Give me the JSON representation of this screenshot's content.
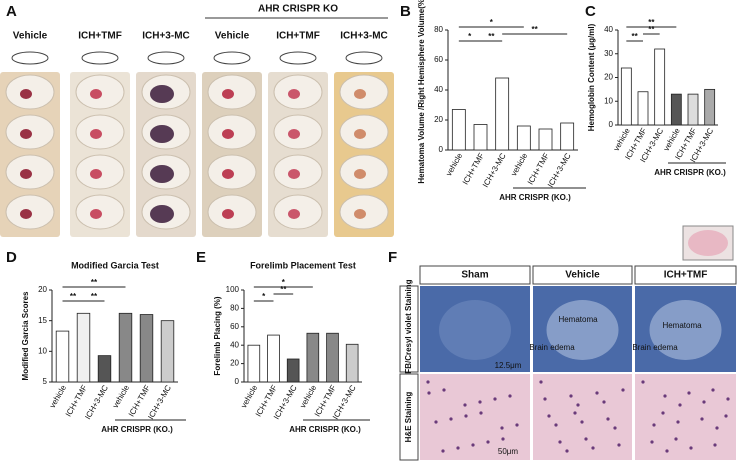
{
  "panel_a": {
    "letter": "A",
    "group": "AHR CRISPR KO",
    "labels": [
      "Vehicle",
      "ICH+TMF",
      "ICH+3-MC",
      "Vehicle",
      "ICH+TMF",
      "ICH+3-MC"
    ]
  },
  "panel_f": {
    "letter": "F",
    "columns": [
      "Sham",
      "Vehicle",
      "ICH+TMF"
    ],
    "rows": [
      "LFB/Cresyl violet Staining",
      "H&E Staining"
    ],
    "annotations": [
      "Hematoma",
      "Brain edema",
      "Hematoma",
      "Brain edema"
    ],
    "scale_bars": [
      "12.5μm",
      "50μm"
    ]
  },
  "chart_data": [
    {
      "type": "bar",
      "letter": "B",
      "ylabel": "Hematoma Volume /Right Hemisphere Volume(%)",
      "categories": [
        "vehicle",
        "ICH+TMF",
        "ICH+3-MC",
        "vehicle",
        "ICH+TMF",
        "ICH+3-MC"
      ],
      "values": [
        27,
        17,
        48,
        16,
        14,
        18
      ],
      "colors": [
        "#ffffff",
        "#ffffff",
        "#ffffff",
        "#ffffff",
        "#ffffff",
        "#ffffff"
      ],
      "ylim": [
        0,
        80
      ],
      "yticks": [
        0,
        20,
        40,
        60,
        80
      ],
      "group_label": "AHR CRISPR (KO.)",
      "significance": [
        "*",
        "*",
        "**",
        "**"
      ]
    },
    {
      "type": "bar",
      "letter": "C",
      "ylabel": "Hemoglobin Content (μg/ml)",
      "categories": [
        "vehicle",
        "ICH+TMF",
        "ICH+3-MC",
        "vehicle",
        "ICH+TMF",
        "ICH+3-MC"
      ],
      "values": [
        24,
        14,
        32,
        13,
        13,
        15
      ],
      "colors": [
        "#ffffff",
        "#ffffff",
        "#ffffff",
        "#555555",
        "#dddddd",
        "#aaaaaa"
      ],
      "ylim": [
        0,
        40
      ],
      "yticks": [
        0,
        10,
        20,
        30,
        40
      ],
      "group_label": "AHR CRISPR (KO.)",
      "significance": [
        "**",
        "**",
        "**"
      ]
    },
    {
      "type": "bar",
      "letter": "D",
      "title": "Modified Garcia Test",
      "ylabel": "Modified Garcia Scores",
      "categories": [
        "vehicle",
        "ICH+TMF",
        "ICH+3-MC",
        "vehicle",
        "ICH+TMF",
        "ICH+3-MC"
      ],
      "values": [
        13.3,
        16.2,
        9.3,
        16.2,
        16,
        15
      ],
      "colors": [
        "#ffffff",
        "#f0f0f0",
        "#555555",
        "#888888",
        "#888888",
        "#cccccc"
      ],
      "ylim": [
        5,
        20
      ],
      "yticks": [
        5,
        10,
        15,
        20
      ],
      "group_label": "AHR CRISPR (KO.)",
      "significance": [
        "**",
        "**",
        "**"
      ]
    },
    {
      "type": "bar",
      "letter": "E",
      "title": "Forelimb Placement Test",
      "ylabel": "Forelimb Placing (%)",
      "categories": [
        "vehicle",
        "ICH+TMF",
        "ICH+3-MC",
        "vehicle",
        "ICH+TMF",
        "ICH+3-MC"
      ],
      "values": [
        40,
        51,
        25,
        53,
        53,
        41
      ],
      "colors": [
        "#ffffff",
        "#ffffff",
        "#555555",
        "#888888",
        "#888888",
        "#cccccc"
      ],
      "ylim": [
        0,
        100
      ],
      "yticks": [
        0,
        20,
        40,
        60,
        80,
        100
      ],
      "group_label": "AHR CRISPR (KO.)",
      "significance": [
        "*",
        "*",
        "**"
      ]
    }
  ]
}
